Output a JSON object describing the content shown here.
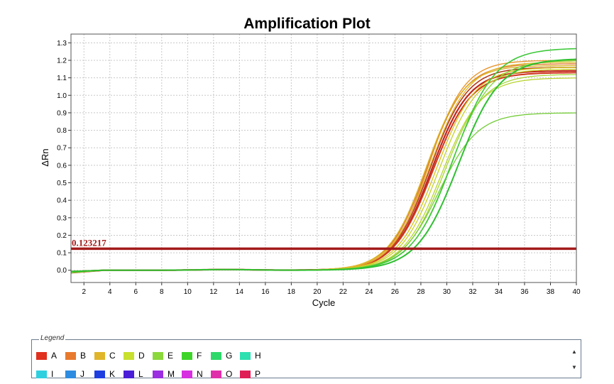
{
  "chart_data": {
    "type": "line",
    "title": "Amplification Plot",
    "xlabel": "Cycle",
    "ylabel": "ΔRn",
    "xlim": [
      1,
      40
    ],
    "ylim": [
      -0.07,
      1.35
    ],
    "x_ticks": [
      2,
      4,
      6,
      8,
      10,
      12,
      14,
      16,
      18,
      20,
      22,
      24,
      26,
      28,
      30,
      32,
      34,
      36,
      38,
      40
    ],
    "y_ticks": [
      "0.0",
      "0.1",
      "0.2",
      "0.3",
      "0.4",
      "0.5",
      "0.6",
      "0.7",
      "0.8",
      "0.9",
      "1.0",
      "1.1",
      "1.2",
      "1.3"
    ],
    "grid": true,
    "threshold": {
      "value": 0.123217,
      "label": "0.123217",
      "color": "#a31a1a"
    },
    "series": [
      {
        "plateau": 1.14,
        "midpoint": 28.8,
        "slope": 1.45,
        "color": "#c0261c",
        "width": 2.2
      },
      {
        "plateau": 1.13,
        "midpoint": 28.9,
        "slope": 1.5,
        "color": "#d0361e",
        "width": 2.0
      },
      {
        "plateau": 1.16,
        "midpoint": 28.7,
        "slope": 1.45,
        "color": "#b53a1d",
        "width": 1.6
      },
      {
        "plateau": 1.18,
        "midpoint": 28.5,
        "slope": 1.45,
        "color": "#e07a2a",
        "width": 1.4
      },
      {
        "plateau": 1.2,
        "midpoint": 28.6,
        "slope": 1.4,
        "color": "#e8962e",
        "width": 1.4
      },
      {
        "plateau": 1.17,
        "midpoint": 28.4,
        "slope": 1.45,
        "color": "#d8b020",
        "width": 1.3
      },
      {
        "plateau": 1.19,
        "midpoint": 28.7,
        "slope": 1.5,
        "color": "#e0b830",
        "width": 1.3
      },
      {
        "plateau": 1.16,
        "midpoint": 29.2,
        "slope": 1.5,
        "color": "#d4c41c",
        "width": 1.3
      },
      {
        "plateau": 1.15,
        "midpoint": 29.4,
        "slope": 1.5,
        "color": "#c6d22a",
        "width": 1.3
      },
      {
        "plateau": 1.1,
        "midpoint": 29.6,
        "slope": 1.5,
        "color": "#b8d430",
        "width": 1.3
      },
      {
        "plateau": 1.12,
        "midpoint": 29.8,
        "slope": 1.5,
        "color": "#a8d63a",
        "width": 1.3
      },
      {
        "plateau": 1.2,
        "midpoint": 30.3,
        "slope": 1.55,
        "color": "#80d43c",
        "width": 1.3
      },
      {
        "plateau": 0.9,
        "midpoint": 29.4,
        "slope": 1.5,
        "color": "#74cc38",
        "width": 1.3
      },
      {
        "plateau": 1.27,
        "midpoint": 30.5,
        "slope": 1.6,
        "color": "#3ec83a",
        "width": 1.6
      },
      {
        "plateau": 1.21,
        "midpoint": 30.9,
        "slope": 1.6,
        "color": "#2ec030",
        "width": 2.0
      }
    ]
  },
  "legend": {
    "caption": "Legend",
    "rows": [
      [
        {
          "label": "A",
          "color": "#e0301e"
        },
        {
          "label": "B",
          "color": "#e87a2e"
        },
        {
          "label": "C",
          "color": "#e0b52a"
        },
        {
          "label": "D",
          "color": "#c8e02e"
        },
        {
          "label": "E",
          "color": "#8ad83a"
        },
        {
          "label": "F",
          "color": "#3ed42a"
        },
        {
          "label": "G",
          "color": "#2ed86a"
        },
        {
          "label": "H",
          "color": "#2ee0b0"
        }
      ],
      [
        {
          "label": "I",
          "color": "#2ed0e0"
        },
        {
          "label": "J",
          "color": "#2e8ce0"
        },
        {
          "label": "K",
          "color": "#1e3ee0"
        },
        {
          "label": "L",
          "color": "#4a1ed8"
        },
        {
          "label": "M",
          "color": "#9a2ee0"
        },
        {
          "label": "N",
          "color": "#d62ee0"
        },
        {
          "label": "O",
          "color": "#e02eaa"
        },
        {
          "label": "P",
          "color": "#e01e56"
        }
      ]
    ]
  }
}
